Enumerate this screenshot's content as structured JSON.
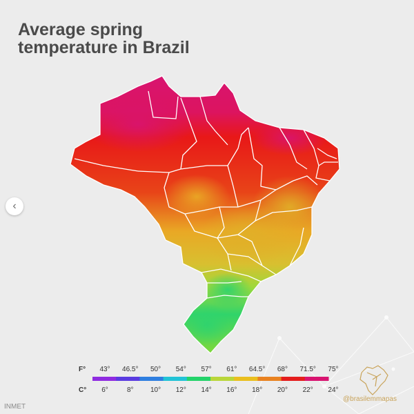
{
  "title_line1": "Average spring",
  "title_line2": "temperature in Brazil",
  "source": "INMET",
  "handle": "@brasilemmapas",
  "icons": {
    "carousel": "chevron-left-icon",
    "logo": "brazil-outline-logo-icon"
  },
  "colors": {
    "background": "#ececec",
    "title": "#4a4a4a",
    "border": "#ffffff",
    "hot": "#d81470",
    "warm": "#e81818",
    "mild": "#e9a825",
    "cool": "#b7d43c",
    "cold": "#30d46a"
  },
  "legend": {
    "fahrenheit_unit": "F°",
    "celsius_unit": "C°",
    "fahrenheit": [
      "43°",
      "46.5°",
      "50°",
      "54°",
      "57°",
      "61°",
      "64.5°",
      "68°",
      "71.5°",
      "75°"
    ],
    "celsius": [
      "6°",
      "8°",
      "10°",
      "12°",
      "14°",
      "16°",
      "18°",
      "20°",
      "22°",
      "24°"
    ],
    "bar_colors": [
      "#8f2be0",
      "#5a3be0",
      "#2f7fe0",
      "#22c3d6",
      "#24d36a",
      "#b9d63a",
      "#eabf1f",
      "#e98220",
      "#e41d1d",
      "#d81470"
    ]
  }
}
